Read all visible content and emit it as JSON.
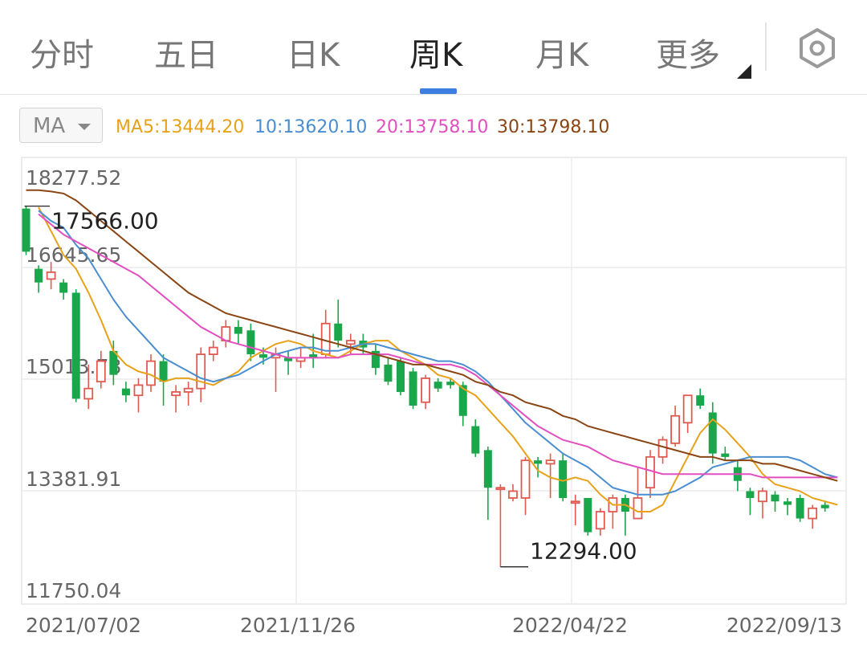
{
  "tabs": [
    {
      "label": "分时",
      "active": false
    },
    {
      "label": "五日",
      "active": false
    },
    {
      "label": "日K",
      "active": false
    },
    {
      "label": "周K",
      "active": true
    },
    {
      "label": "月K",
      "active": false
    },
    {
      "label": "更多",
      "active": false
    }
  ],
  "settings_icon": "hexagon-gear-icon",
  "indicator": {
    "selected": "MA",
    "legend": [
      {
        "text": "MA5:13444.20",
        "color": "#e8a21a"
      },
      {
        "text": "10:13620.10",
        "color": "#4a8ed0"
      },
      {
        "text": "20:13758.10",
        "color": "#e24fc1"
      },
      {
        "text": "30:13798.10",
        "color": "#8b4513"
      }
    ]
  },
  "colors": {
    "up": "#e05a4f",
    "down": "#1aa64a",
    "ma5": "#e8a21a",
    "ma10": "#4a8ed0",
    "ma20": "#e24fc1",
    "ma30": "#8b4513"
  },
  "chart_data": {
    "type": "candlestick",
    "y_tick_labels": [
      "18277.52",
      "16645.65",
      "15013.78",
      "13381.91",
      "11750.04"
    ],
    "ylim": [
      11750.04,
      18277.52
    ],
    "x_tick_labels": [
      "2021/07/02",
      "2021/11/26",
      "2022/04/22",
      "2022/09/13"
    ],
    "annotations": {
      "high": "17566.00",
      "low": "12294.00"
    },
    "candles": [
      [
        17530,
        16900,
        17566,
        16850
      ],
      [
        16650,
        16450,
        16700,
        16300
      ],
      [
        16500,
        16600,
        16750,
        16350
      ],
      [
        16450,
        16300,
        16500,
        16200
      ],
      [
        16300,
        14750,
        16350,
        14700
      ],
      [
        14750,
        14900,
        15250,
        14600
      ],
      [
        15000,
        15300,
        15450,
        14900
      ],
      [
        15450,
        15100,
        15600,
        14950
      ],
      [
        14900,
        14800,
        15000,
        14700
      ],
      [
        14800,
        14950,
        15050,
        14550
      ],
      [
        14950,
        15300,
        15400,
        14850
      ],
      [
        15300,
        15000,
        15400,
        14650
      ],
      [
        14800,
        14850,
        14950,
        14550
      ],
      [
        14850,
        14900,
        15000,
        14650
      ],
      [
        14900,
        15400,
        15500,
        14700
      ],
      [
        15400,
        15500,
        15600,
        15300
      ],
      [
        15600,
        15800,
        15900,
        15500
      ],
      [
        15800,
        15700,
        15900,
        15550
      ],
      [
        15750,
        15400,
        15850,
        15300
      ],
      [
        15400,
        15350,
        15500,
        15250
      ],
      [
        15350,
        15400,
        15500,
        14850
      ],
      [
        15350,
        15300,
        15450,
        15100
      ],
      [
        15300,
        15350,
        15500,
        15200
      ],
      [
        15400,
        15350,
        15700,
        15200
      ],
      [
        15400,
        15850,
        16050,
        15350
      ],
      [
        15850,
        15600,
        16200,
        15500
      ],
      [
        15550,
        15600,
        15700,
        15400
      ],
      [
        15600,
        15500,
        15700,
        15400
      ],
      [
        15450,
        15200,
        15550,
        15100
      ],
      [
        15250,
        15000,
        15350,
        14950
      ],
      [
        15300,
        14850,
        15350,
        14800
      ],
      [
        15150,
        14650,
        15200,
        14600
      ],
      [
        14700,
        15050,
        15100,
        14600
      ],
      [
        15000,
        14900,
        15050,
        14850
      ],
      [
        15000,
        14950,
        15050,
        14900
      ],
      [
        14950,
        14500,
        15000,
        14350
      ],
      [
        14350,
        13950,
        14450,
        13900
      ],
      [
        14000,
        13450,
        14050,
        12980
      ],
      [
        13450,
        13450,
        13500,
        12294
      ],
      [
        13300,
        13400,
        13500,
        13250
      ],
      [
        13300,
        13850,
        13900,
        13050
      ],
      [
        13850,
        13800,
        13900,
        13600
      ],
      [
        13800,
        13850,
        13950,
        13300
      ],
      [
        13850,
        13300,
        13950,
        13250
      ],
      [
        13250,
        13250,
        13350,
        12900
      ],
      [
        13300,
        12800,
        13300,
        12750
      ],
      [
        12850,
        13100,
        13150,
        12750
      ],
      [
        13100,
        13300,
        13350,
        12850
      ],
      [
        13300,
        13100,
        13350,
        12750
      ],
      [
        13000,
        13300,
        13750,
        13000
      ],
      [
        13450,
        13900,
        14000,
        13300
      ],
      [
        13900,
        14150,
        14200,
        13800
      ],
      [
        14100,
        14500,
        14650,
        14050
      ],
      [
        14400,
        14800,
        14750,
        14250
      ],
      [
        14800,
        14650,
        14900,
        14600
      ],
      [
        14550,
        13950,
        14700,
        13800
      ],
      [
        13950,
        13900,
        14050,
        13850
      ],
      [
        13750,
        13550,
        13850,
        13400
      ],
      [
        13400,
        13300,
        13450,
        13050
      ],
      [
        13250,
        13400,
        13450,
        13000
      ],
      [
        13350,
        13250,
        13400,
        13100
      ],
      [
        13250,
        13200,
        13300,
        13050
      ],
      [
        13300,
        13000,
        13350,
        12950
      ],
      [
        13000,
        13150,
        13200,
        12850
      ],
      [
        13200,
        13150,
        13250,
        13100
      ]
    ],
    "ma": {
      "ma5": [
        [
          1,
          17550
        ],
        [
          2,
          17200
        ],
        [
          3,
          16850
        ],
        [
          4,
          16650
        ],
        [
          5,
          16300
        ],
        [
          6,
          15900
        ],
        [
          7,
          15450
        ],
        [
          8,
          15250
        ],
        [
          9,
          15150
        ],
        [
          10,
          15100
        ],
        [
          11,
          15000
        ],
        [
          12,
          15050
        ],
        [
          13,
          15050
        ],
        [
          14,
          15000
        ],
        [
          15,
          14950
        ],
        [
          16,
          15050
        ],
        [
          17,
          15150
        ],
        [
          18,
          15350
        ],
        [
          19,
          15450
        ],
        [
          20,
          15550
        ],
        [
          21,
          15600
        ],
        [
          22,
          15550
        ],
        [
          23,
          15450
        ],
        [
          24,
          15400
        ],
        [
          25,
          15350
        ],
        [
          26,
          15450
        ],
        [
          27,
          15550
        ],
        [
          28,
          15600
        ],
        [
          29,
          15600
        ],
        [
          30,
          15450
        ],
        [
          31,
          15350
        ],
        [
          32,
          15250
        ],
        [
          33,
          15100
        ],
        [
          34,
          15050
        ],
        [
          35,
          14900
        ],
        [
          36,
          14800
        ],
        [
          37,
          14600
        ],
        [
          38,
          14400
        ],
        [
          39,
          14200
        ],
        [
          40,
          13950
        ],
        [
          41,
          13700
        ],
        [
          42,
          13600
        ],
        [
          43,
          13550
        ],
        [
          44,
          13600
        ],
        [
          45,
          13550
        ],
        [
          46,
          13350
        ],
        [
          47,
          13200
        ],
        [
          48,
          13200
        ],
        [
          49,
          13100
        ],
        [
          50,
          13100
        ],
        [
          51,
          13200
        ],
        [
          52,
          13550
        ],
        [
          53,
          13900
        ],
        [
          54,
          14250
        ],
        [
          55,
          14450
        ],
        [
          56,
          14300
        ],
        [
          57,
          14100
        ],
        [
          58,
          13900
        ],
        [
          59,
          13650
        ],
        [
          60,
          13500
        ],
        [
          61,
          13450
        ],
        [
          62,
          13400
        ],
        [
          63,
          13300
        ],
        [
          64,
          13250
        ],
        [
          65,
          13200
        ]
      ],
      "ma10": [
        [
          1,
          17500
        ],
        [
          2,
          17350
        ],
        [
          3,
          17250
        ],
        [
          4,
          17000
        ],
        [
          5,
          16800
        ],
        [
          6,
          16500
        ],
        [
          7,
          16200
        ],
        [
          8,
          15950
        ],
        [
          9,
          15750
        ],
        [
          10,
          15550
        ],
        [
          11,
          15350
        ],
        [
          12,
          15250
        ],
        [
          13,
          15150
        ],
        [
          14,
          15050
        ],
        [
          15,
          15000
        ],
        [
          16,
          15050
        ],
        [
          17,
          15100
        ],
        [
          18,
          15200
        ],
        [
          19,
          15300
        ],
        [
          20,
          15400
        ],
        [
          21,
          15450
        ],
        [
          22,
          15500
        ],
        [
          23,
          15500
        ],
        [
          24,
          15450
        ],
        [
          25,
          15450
        ],
        [
          26,
          15500
        ],
        [
          27,
          15550
        ],
        [
          28,
          15550
        ],
        [
          29,
          15500
        ],
        [
          30,
          15450
        ],
        [
          31,
          15400
        ],
        [
          32,
          15350
        ],
        [
          33,
          15300
        ],
        [
          34,
          15300
        ],
        [
          35,
          15250
        ],
        [
          36,
          15150
        ],
        [
          37,
          15000
        ],
        [
          38,
          14800
        ],
        [
          39,
          14600
        ],
        [
          40,
          14400
        ],
        [
          41,
          14250
        ],
        [
          42,
          14100
        ],
        [
          43,
          13950
        ],
        [
          44,
          13850
        ],
        [
          45,
          13750
        ],
        [
          46,
          13600
        ],
        [
          47,
          13450
        ],
        [
          48,
          13400
        ],
        [
          49,
          13350
        ],
        [
          50,
          13350
        ],
        [
          51,
          13350
        ],
        [
          52,
          13400
        ],
        [
          53,
          13500
        ],
        [
          54,
          13600
        ],
        [
          55,
          13750
        ],
        [
          56,
          13800
        ],
        [
          57,
          13850
        ],
        [
          58,
          13900
        ],
        [
          59,
          13900
        ],
        [
          60,
          13900
        ],
        [
          61,
          13900
        ],
        [
          62,
          13850
        ],
        [
          63,
          13750
        ],
        [
          64,
          13650
        ],
        [
          65,
          13600
        ]
      ],
      "ma20": [
        [
          1,
          17450
        ],
        [
          2,
          17300
        ],
        [
          3,
          17150
        ],
        [
          4,
          17050
        ],
        [
          5,
          16950
        ],
        [
          6,
          16850
        ],
        [
          7,
          16750
        ],
        [
          8,
          16650
        ],
        [
          9,
          16550
        ],
        [
          10,
          16400
        ],
        [
          11,
          16250
        ],
        [
          12,
          16100
        ],
        [
          13,
          15950
        ],
        [
          14,
          15800
        ],
        [
          15,
          15700
        ],
        [
          16,
          15600
        ],
        [
          17,
          15550
        ],
        [
          18,
          15500
        ],
        [
          19,
          15450
        ],
        [
          20,
          15400
        ],
        [
          21,
          15350
        ],
        [
          22,
          15350
        ],
        [
          23,
          15350
        ],
        [
          24,
          15350
        ],
        [
          25,
          15350
        ],
        [
          26,
          15400
        ],
        [
          27,
          15400
        ],
        [
          28,
          15400
        ],
        [
          29,
          15400
        ],
        [
          30,
          15350
        ],
        [
          31,
          15300
        ],
        [
          32,
          15250
        ],
        [
          33,
          15250
        ],
        [
          34,
          15250
        ],
        [
          35,
          15200
        ],
        [
          36,
          15100
        ],
        [
          37,
          14950
        ],
        [
          38,
          14800
        ],
        [
          39,
          14650
        ],
        [
          40,
          14500
        ],
        [
          41,
          14350
        ],
        [
          42,
          14250
        ],
        [
          43,
          14150
        ],
        [
          44,
          14100
        ],
        [
          45,
          14050
        ],
        [
          46,
          13950
        ],
        [
          47,
          13850
        ],
        [
          48,
          13800
        ],
        [
          49,
          13750
        ],
        [
          50,
          13700
        ],
        [
          51,
          13650
        ],
        [
          52,
          13650
        ],
        [
          53,
          13650
        ],
        [
          54,
          13650
        ],
        [
          55,
          13650
        ],
        [
          56,
          13650
        ],
        [
          57,
          13650
        ],
        [
          58,
          13650
        ],
        [
          59,
          13600
        ],
        [
          60,
          13600
        ],
        [
          61,
          13600
        ],
        [
          62,
          13600
        ],
        [
          63,
          13600
        ],
        [
          64,
          13600
        ],
        [
          65,
          13600
        ]
      ],
      "ma30": [
        [
          0,
          17800
        ],
        [
          1,
          17800
        ],
        [
          2,
          17780
        ],
        [
          3,
          17750
        ],
        [
          4,
          17650
        ],
        [
          5,
          17500
        ],
        [
          6,
          17350
        ],
        [
          7,
          17200
        ],
        [
          8,
          17050
        ],
        [
          9,
          16900
        ],
        [
          10,
          16750
        ],
        [
          11,
          16600
        ],
        [
          12,
          16450
        ],
        [
          13,
          16300
        ],
        [
          14,
          16200
        ],
        [
          15,
          16100
        ],
        [
          16,
          16000
        ],
        [
          17,
          15950
        ],
        [
          18,
          15900
        ],
        [
          19,
          15850
        ],
        [
          20,
          15800
        ],
        [
          21,
          15750
        ],
        [
          22,
          15700
        ],
        [
          23,
          15650
        ],
        [
          24,
          15600
        ],
        [
          25,
          15550
        ],
        [
          26,
          15500
        ],
        [
          27,
          15450
        ],
        [
          28,
          15400
        ],
        [
          29,
          15350
        ],
        [
          30,
          15300
        ],
        [
          31,
          15250
        ],
        [
          32,
          15250
        ],
        [
          33,
          15200
        ],
        [
          34,
          15150
        ],
        [
          35,
          15100
        ],
        [
          36,
          15000
        ],
        [
          37,
          14950
        ],
        [
          38,
          14850
        ],
        [
          39,
          14800
        ],
        [
          40,
          14700
        ],
        [
          41,
          14650
        ],
        [
          42,
          14600
        ],
        [
          43,
          14500
        ],
        [
          44,
          14450
        ],
        [
          45,
          14350
        ],
        [
          46,
          14300
        ],
        [
          47,
          14250
        ],
        [
          48,
          14200
        ],
        [
          49,
          14150
        ],
        [
          50,
          14100
        ],
        [
          51,
          14050
        ],
        [
          52,
          14000
        ],
        [
          53,
          13950
        ],
        [
          54,
          13900
        ],
        [
          55,
          13900
        ],
        [
          56,
          13850
        ],
        [
          57,
          13850
        ],
        [
          58,
          13850
        ],
        [
          59,
          13800
        ],
        [
          60,
          13800
        ],
        [
          61,
          13750
        ],
        [
          62,
          13700
        ],
        [
          63,
          13650
        ],
        [
          64,
          13600
        ],
        [
          65,
          13550
        ]
      ]
    }
  }
}
